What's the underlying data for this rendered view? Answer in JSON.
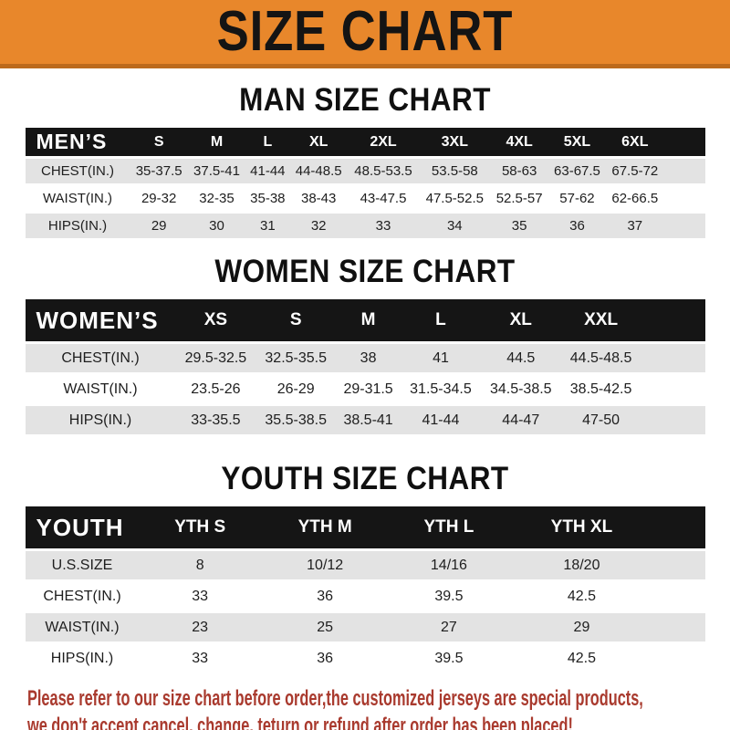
{
  "banner": {
    "title": "SIZE CHART"
  },
  "sections": {
    "men": {
      "heading": "MAN SIZE CHART"
    },
    "women": {
      "heading": "WOMEN SIZE CHART"
    },
    "youth": {
      "heading": "YOUTH SIZE CHART"
    }
  },
  "tables": {
    "men": {
      "label": "MEN’S",
      "columns": [
        "S",
        "M",
        "L",
        "XL",
        "2XL",
        "3XL",
        "4XL",
        "5XL",
        "6XL"
      ],
      "rows": [
        {
          "label": "CHEST(IN.)",
          "values": [
            "35-37.5",
            "37.5-41",
            "41-44",
            "44-48.5",
            "48.5-53.5",
            "53.5-58",
            "58-63",
            "63-67.5",
            "67.5-72"
          ]
        },
        {
          "label": "WAIST(IN.)",
          "values": [
            "29-32",
            "32-35",
            "35-38",
            "38-43",
            "43-47.5",
            "47.5-52.5",
            "52.5-57",
            "57-62",
            "62-66.5"
          ]
        },
        {
          "label": "HIPS(IN.)",
          "values": [
            "29",
            "30",
            "31",
            "32",
            "33",
            "34",
            "35",
            "36",
            "37"
          ]
        }
      ]
    },
    "women": {
      "label": "WOMEN’S",
      "columns": [
        "XS",
        "S",
        "M",
        "L",
        "XL",
        "XXL"
      ],
      "rows": [
        {
          "label": "CHEST(IN.)",
          "values": [
            "29.5-32.5",
            "32.5-35.5",
            "38",
            "41",
            "44.5",
            "44.5-48.5"
          ]
        },
        {
          "label": "WAIST(IN.)",
          "values": [
            "23.5-26",
            "26-29",
            "29-31.5",
            "31.5-34.5",
            "34.5-38.5",
            "38.5-42.5"
          ]
        },
        {
          "label": "HIPS(IN.)",
          "values": [
            "33-35.5",
            "35.5-38.5",
            "38.5-41",
            "41-44",
            "44-47",
            "47-50"
          ]
        }
      ]
    },
    "youth": {
      "label": "YOUTH",
      "columns": [
        "YTH S",
        "YTH M",
        "YTH L",
        "YTH XL"
      ],
      "rows": [
        {
          "label": "U.S.SIZE",
          "values": [
            "8",
            "10/12",
            "14/16",
            "18/20"
          ]
        },
        {
          "label": "CHEST(IN.)",
          "values": [
            "33",
            "36",
            "39.5",
            "42.5"
          ]
        },
        {
          "label": "WAIST(IN.)",
          "values": [
            "23",
            "25",
            "27",
            "29"
          ]
        },
        {
          "label": "HIPS(IN.)",
          "values": [
            "33",
            "36",
            "39.5",
            "42.5"
          ]
        }
      ]
    }
  },
  "footer": {
    "line1": "Please refer to our size chart before order,the customized jerseys are special products,",
    "line2": "we don't accept cancel, change, teturn or refund after order has been placed!"
  },
  "colors": {
    "banner-orange": "#E8872B",
    "banner-edge": "#BC6A1C",
    "header-black": "#151515",
    "row-gray": "#E3E3E3",
    "footer-red": "#A93A2E"
  }
}
